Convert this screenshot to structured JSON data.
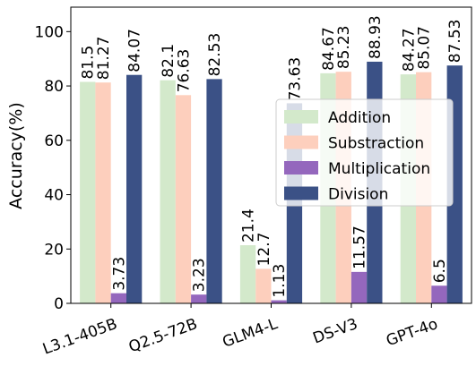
{
  "chart_data": {
    "type": "bar",
    "title": "",
    "xlabel": "",
    "ylabel": "Accuracy(%)",
    "ylim": [
      0,
      109
    ],
    "yticks": [
      0,
      20,
      40,
      60,
      80,
      100
    ],
    "grid": false,
    "legend_position": "center-right",
    "categories": [
      "L3.1-405B",
      "Q2.5-72B",
      "GLM4-L",
      "DS-V3",
      "GPT-4o"
    ],
    "series": [
      {
        "name": "Addition",
        "color": "#d3e9cb",
        "values": [
          81.5,
          82.1,
          21.4,
          84.67,
          84.27
        ],
        "labels": [
          "81.5",
          "82.1",
          "21.4",
          "84.67",
          "84.27"
        ]
      },
      {
        "name": "Substraction",
        "color": "#fdcfbd",
        "values": [
          81.27,
          76.63,
          12.7,
          85.23,
          85.07
        ],
        "labels": [
          "81.27",
          "76.63",
          "12.7",
          "85.23",
          "85.07"
        ]
      },
      {
        "name": "Multiplication",
        "color": "#9467bd",
        "values": [
          3.73,
          3.23,
          1.13,
          11.57,
          6.5
        ],
        "labels": [
          "3.73",
          "3.23",
          "1.13",
          "11.57",
          "6.5"
        ]
      },
      {
        "name": "Division",
        "color": "#3b5186",
        "values": [
          84.07,
          82.53,
          73.63,
          88.93,
          87.53
        ],
        "labels": [
          "84.07",
          "82.53",
          "73.63",
          "88.93",
          "87.53"
        ]
      }
    ]
  }
}
